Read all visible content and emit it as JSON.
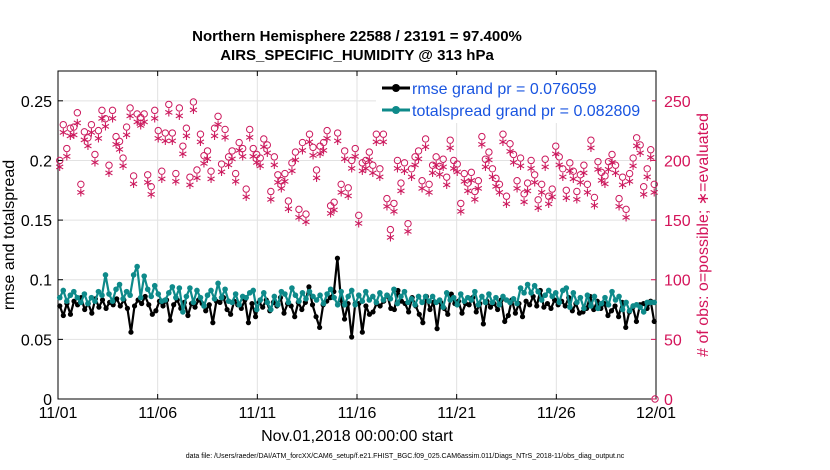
{
  "chart_data": {
    "type": "line",
    "title": "Northern Hemisphere 22588 / 23191 = 97.400%",
    "subtitle": "AIRS_SPECIFIC_HUMIDITY @ 313 hPa",
    "xlabel": "Nov.01,2018 00:00:00 start",
    "ylabel": "rmse and totalspread",
    "ylabel_right": "# of obs: o=possible; ∗=evaluated",
    "x_ticks": [
      "11/01",
      "11/06",
      "11/11",
      "11/16",
      "11/21",
      "11/26",
      "12/01"
    ],
    "xlim": [
      0,
      30
    ],
    "ylim": [
      0,
      0.275
    ],
    "y_ticks": [
      "0",
      "0.05",
      "0.1",
      "0.15",
      "0.2",
      "0.25"
    ],
    "y_tick_values": [
      0,
      0.05,
      0.1,
      0.15,
      0.2,
      0.25
    ],
    "ylim_right": [
      0,
      275
    ],
    "y_ticks_right": [
      "0",
      "50",
      "100",
      "150",
      "200",
      "250"
    ],
    "y_tick_values_right": [
      0,
      50,
      100,
      150,
      200,
      250
    ],
    "grid": true,
    "legend_position": "top-right",
    "series": [
      {
        "name": "rmse grand pr = 0.076059",
        "axis": "left",
        "color": "#000000",
        "marker": "filled-star",
        "values": [
          0.078,
          0.07,
          0.08,
          0.071,
          0.082,
          0.079,
          0.085,
          0.075,
          0.08,
          0.072,
          0.084,
          0.077,
          0.083,
          0.076,
          0.081,
          0.079,
          0.084,
          0.078,
          0.083,
          0.076,
          0.056,
          0.078,
          0.083,
          0.08,
          0.086,
          0.079,
          0.071,
          0.074,
          0.082,
          0.078,
          0.083,
          0.066,
          0.079,
          0.083,
          0.076,
          0.081,
          0.07,
          0.08,
          0.077,
          0.083,
          0.08,
          0.074,
          0.079,
          0.064,
          0.082,
          0.081,
          0.085,
          0.075,
          0.071,
          0.082,
          0.079,
          0.076,
          0.083,
          0.064,
          0.08,
          0.069,
          0.081,
          0.077,
          0.083,
          0.074,
          0.081,
          0.078,
          0.085,
          0.072,
          0.08,
          0.078,
          0.069,
          0.081,
          0.075,
          0.081,
          0.094,
          0.079,
          0.069,
          0.06,
          0.079,
          0.082,
          0.085,
          0.09,
          0.118,
          0.083,
          0.067,
          0.08,
          0.052,
          0.08,
          0.08,
          0.056,
          0.078,
          0.071,
          0.073,
          0.08,
          0.078,
          0.082,
          0.087,
          0.076,
          0.075,
          0.091,
          0.082,
          0.08,
          0.073,
          0.085,
          0.078,
          0.071,
          0.064,
          0.086,
          0.075,
          0.081,
          0.059,
          0.081,
          0.076,
          0.071,
          0.088,
          0.08,
          0.082,
          0.072,
          0.08,
          0.079,
          0.085,
          0.073,
          0.08,
          0.063,
          0.082,
          0.077,
          0.08,
          0.075,
          0.083,
          0.065,
          0.07,
          0.083,
          0.072,
          0.08,
          0.069,
          0.082,
          0.079,
          0.086,
          0.078,
          0.091,
          0.077,
          0.08,
          0.076,
          0.083,
          0.079,
          0.082,
          0.078,
          0.085,
          0.074,
          0.08,
          0.072,
          0.073,
          0.076,
          0.086,
          0.075,
          0.082,
          0.076,
          0.08,
          0.07,
          0.074,
          0.078,
          0.069,
          0.081,
          0.06,
          0.073,
          0.077,
          0.065,
          0.079,
          0.08,
          0.076,
          0.082,
          0.065
        ]
      },
      {
        "name": "totalspread grand pr = 0.082809",
        "axis": "left",
        "color": "#0e8a8a",
        "marker": "filled-circle",
        "values": [
          0.085,
          0.091,
          0.082,
          0.087,
          0.09,
          0.085,
          0.081,
          0.088,
          0.08,
          0.085,
          0.082,
          0.09,
          0.087,
          0.104,
          0.088,
          0.082,
          0.092,
          0.096,
          0.084,
          0.09,
          0.087,
          0.104,
          0.111,
          0.085,
          0.103,
          0.092,
          0.086,
          0.095,
          0.088,
          0.082,
          0.083,
          0.089,
          0.094,
          0.085,
          0.093,
          0.073,
          0.086,
          0.093,
          0.081,
          0.091,
          0.085,
          0.078,
          0.087,
          0.091,
          0.084,
          0.097,
          0.085,
          0.092,
          0.082,
          0.081,
          0.088,
          0.079,
          0.086,
          0.085,
          0.089,
          0.091,
          0.075,
          0.083,
          0.089,
          0.081,
          0.075,
          0.086,
          0.079,
          0.09,
          0.088,
          0.081,
          0.093,
          0.087,
          0.082,
          0.089,
          0.084,
          0.09,
          0.086,
          0.083,
          0.087,
          0.08,
          0.088,
          0.092,
          0.085,
          0.079,
          0.09,
          0.079,
          0.086,
          0.091,
          0.079,
          0.087,
          0.082,
          0.09,
          0.083,
          0.086,
          0.081,
          0.089,
          0.083,
          0.087,
          0.084,
          0.092,
          0.08,
          0.086,
          0.09,
          0.081,
          0.084,
          0.079,
          0.086,
          0.081,
          0.086,
          0.082,
          0.086,
          0.081,
          0.083,
          0.077,
          0.089,
          0.083,
          0.085,
          0.079,
          0.088,
          0.082,
          0.085,
          0.083,
          0.09,
          0.079,
          0.086,
          0.081,
          0.088,
          0.081,
          0.085,
          0.079,
          0.086,
          0.083,
          0.081,
          0.084,
          0.08,
          0.093,
          0.089,
          0.096,
          0.089,
          0.095,
          0.09,
          0.083,
          0.087,
          0.091,
          0.086,
          0.089,
          0.081,
          0.091,
          0.093,
          0.077,
          0.089,
          0.081,
          0.085,
          0.076,
          0.087,
          0.078,
          0.086,
          0.076,
          0.08,
          0.085,
          0.079,
          0.09,
          0.083,
          0.086,
          0.075,
          0.081,
          0.074,
          0.078,
          0.079,
          0.077,
          0.073,
          0.081,
          0.081,
          0.081
        ]
      },
      {
        "name": "possible obs",
        "axis": "right",
        "color": "#cc1a5e",
        "marker": "open-circle",
        "values": [
          200,
          230,
          210,
          227,
          228,
          240,
          180,
          224,
          219,
          230,
          205,
          225,
          242,
          235,
          196,
          242,
          220,
          216,
          202,
          228,
          244,
          187,
          239,
          236,
          239,
          188,
          178,
          242,
          225,
          191,
          223,
          247,
          223,
          189,
          244,
          212,
          227,
          186,
          249,
          192,
          222,
          204,
          208,
          191,
          227,
          237,
          197,
          226,
          203,
          208,
          189,
          215,
          210,
          176,
          226,
          210,
          205,
          202,
          218,
          213,
          174,
          203,
          188,
          183,
          189,
          166,
          198,
          207,
          159,
          215,
          155,
          222,
          211,
          192,
          212,
          215,
          225,
          162,
          165,
          223,
          180,
          208,
          177,
          200,
          210,
          154,
          198,
          200,
          207,
          196,
          222,
          193,
          222,
          168,
          142,
          164,
          200,
          181,
          198,
          147,
          193,
          203,
          208,
          183,
          218,
          180,
          196,
          203,
          195,
          201,
          186,
          217,
          200,
          197,
          164,
          189,
          181,
          190,
          174,
          183,
          220,
          201,
          207,
          193,
          185,
          180,
          222,
          170,
          214,
          205,
          183,
          202,
          172,
          181,
          200,
          188,
          167,
          180,
          201,
          170,
          176,
          212,
          203,
          193,
          175,
          198,
          191,
          174,
          188,
          196,
          180,
          217,
          169,
          199,
          190,
          187,
          199,
          205,
          196,
          168,
          186,
          159,
          189,
          202,
          219,
          213,
          178,
          193,
          209,
          180
        ]
      },
      {
        "name": "evaluated obs",
        "axis": "right",
        "color": "#cc1a5e",
        "marker": "star",
        "values": [
          196,
          225,
          205,
          222,
          223,
          233,
          175,
          219,
          214,
          225,
          200,
          220,
          237,
          230,
          191,
          237,
          215,
          211,
          197,
          223,
          239,
          182,
          234,
          231,
          234,
          183,
          173,
          237,
          220,
          186,
          218,
          242,
          218,
          184,
          239,
          207,
          222,
          181,
          244,
          187,
          217,
          199,
          203,
          186,
          222,
          232,
          192,
          221,
          198,
          203,
          184,
          210,
          205,
          171,
          221,
          205,
          200,
          197,
          213,
          208,
          169,
          198,
          183,
          178,
          184,
          161,
          193,
          202,
          154,
          210,
          150,
          217,
          206,
          187,
          207,
          210,
          220,
          157,
          160,
          218,
          175,
          203,
          172,
          195,
          205,
          149,
          193,
          195,
          202,
          191,
          217,
          188,
          217,
          163,
          137,
          159,
          195,
          176,
          193,
          142,
          188,
          198,
          203,
          178,
          213,
          175,
          191,
          198,
          190,
          196,
          181,
          212,
          195,
          192,
          159,
          184,
          176,
          185,
          169,
          178,
          215,
          196,
          202,
          188,
          180,
          175,
          217,
          165,
          209,
          200,
          178,
          197,
          167,
          176,
          195,
          183,
          162,
          175,
          196,
          165,
          171,
          207,
          198,
          188,
          170,
          193,
          186,
          169,
          183,
          191,
          175,
          212,
          164,
          194,
          185,
          182,
          194,
          200,
          191,
          163,
          181,
          154,
          184,
          197,
          214,
          208,
          173,
          188,
          204,
          175
        ]
      }
    ]
  },
  "footer": "data file: /Users/raeder/DAI/ATM_forcXX/CAM6_setup/f.e21.FHIST_BGC.f09_025.CAM6assim.011/Diags_NTrS_2018-11/obs_diag_output.nc"
}
